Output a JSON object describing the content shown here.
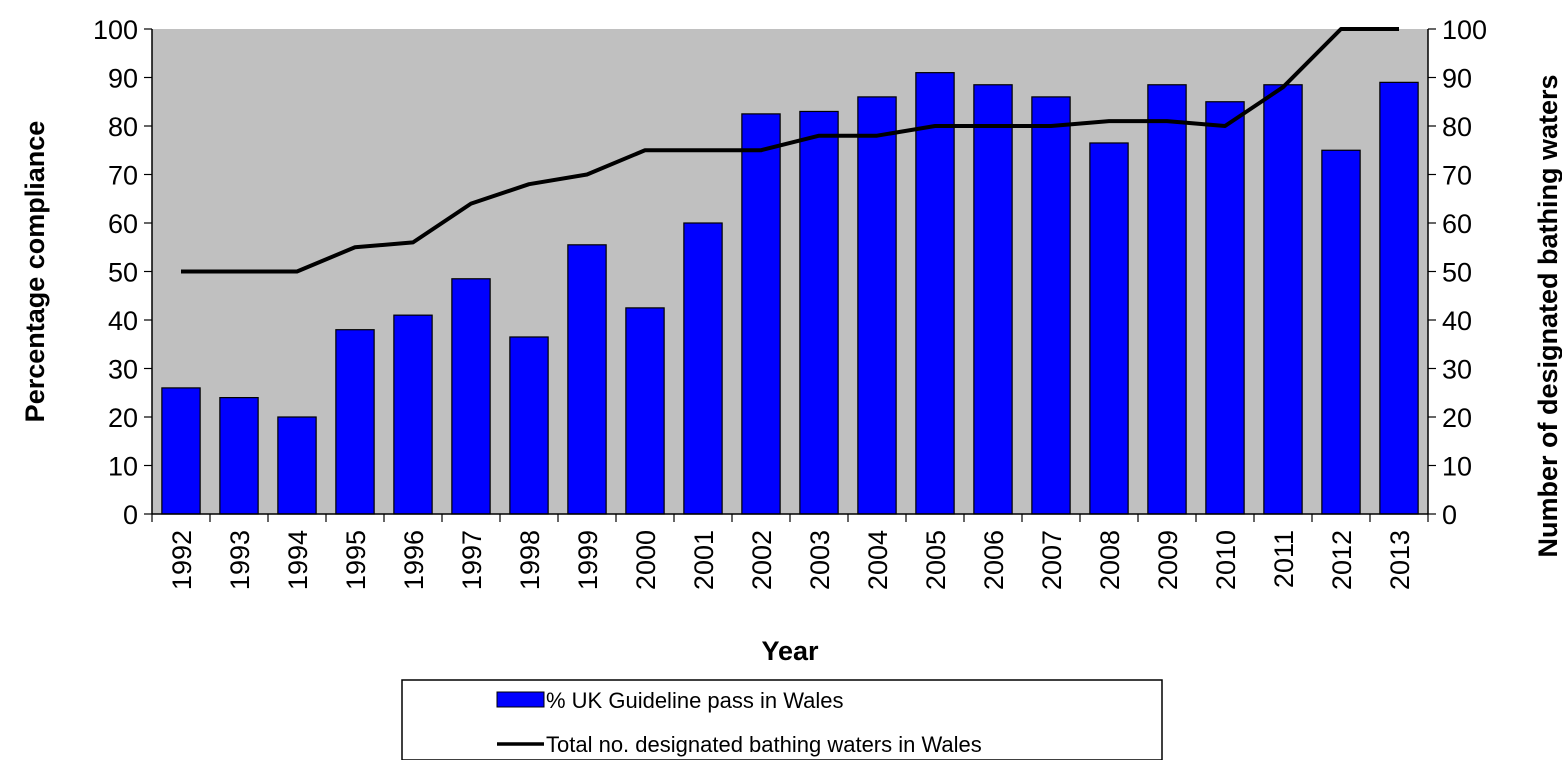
{
  "chart_data": {
    "type": "bar",
    "categories": [
      "1992",
      "1993",
      "1994",
      "1995",
      "1996",
      "1997",
      "1998",
      "1999",
      "2000",
      "2001",
      "2002",
      "2003",
      "2004",
      "2005",
      "2006",
      "2007",
      "2008",
      "2009",
      "2010",
      "2011",
      "2012",
      "2013"
    ],
    "series": [
      {
        "name": "% UK Guideline pass in Wales",
        "type": "bar",
        "axis": "left",
        "color": "#0000ff",
        "values": [
          26,
          24,
          20,
          38,
          41,
          48.5,
          36.5,
          55.5,
          42.5,
          60,
          82.5,
          83,
          86,
          91,
          88.5,
          86,
          76.5,
          88.5,
          85,
          88.5,
          75,
          89
        ]
      },
      {
        "name": "Total no. designated bathing waters in Wales",
        "type": "line",
        "axis": "right",
        "color": "#000000",
        "values": [
          50,
          50,
          50,
          55,
          56,
          64,
          68,
          70,
          75,
          75,
          75,
          78,
          78,
          80,
          80,
          80,
          81,
          81,
          80,
          88,
          100,
          100
        ]
      }
    ],
    "xlabel": "Year",
    "ylabel": "Percentage compliance",
    "y2label": "Number of designated bathing waters",
    "ylim": [
      0,
      100
    ],
    "y2lim": [
      0,
      100
    ],
    "yticks": [
      "0",
      "10",
      "20",
      "30",
      "40",
      "50",
      "60",
      "70",
      "80",
      "90",
      "100"
    ],
    "y2ticks": [
      "0",
      "10",
      "20",
      "30",
      "40",
      "50",
      "60",
      "70",
      "80",
      "90",
      "100"
    ],
    "plot_background": "#c0c0c0",
    "grid": false,
    "legend": {
      "position": "bottom",
      "entries": [
        "% UK Guideline pass in Wales",
        "Total no. designated bathing waters in Wales"
      ]
    }
  }
}
